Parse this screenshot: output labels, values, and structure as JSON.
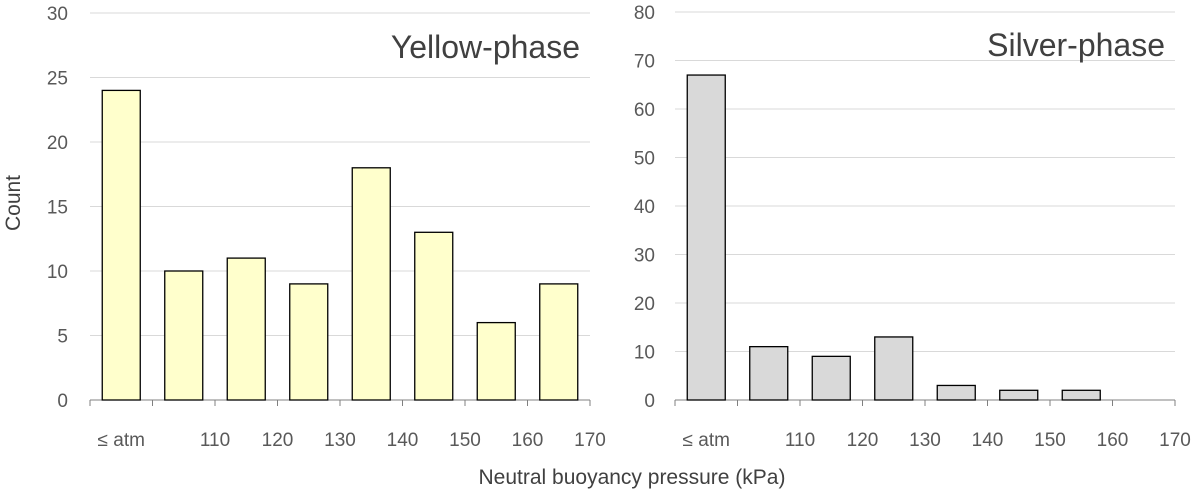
{
  "figure": {
    "shared_xlabel": "Neutral buoyancy pressure (kPa)"
  },
  "chart_data": [
    {
      "type": "bar",
      "title": "Yellow-phase",
      "ylabel": "Count",
      "xlabel": "Neutral buoyancy pressure (kPa)",
      "ylim": [
        0,
        30
      ],
      "yticks": [
        0,
        5,
        10,
        15,
        20,
        25,
        30
      ],
      "categories": [
        "≤ atm",
        "100–110",
        "110–120",
        "120–130",
        "130–140",
        "140–150",
        "150–160",
        "160–170"
      ],
      "values": [
        24,
        10,
        11,
        9,
        18,
        13,
        6,
        9
      ],
      "xtick_labels": [
        "≤ atm",
        "110",
        "120",
        "130",
        "140",
        "150",
        "160",
        "170"
      ],
      "bar_color": "#ffffcc",
      "grid": true
    },
    {
      "type": "bar",
      "title": "Silver-phase",
      "ylabel": "",
      "xlabel": "Neutral buoyancy pressure (kPa)",
      "ylim": [
        0,
        80
      ],
      "yticks": [
        0,
        10,
        20,
        30,
        40,
        50,
        60,
        70,
        80
      ],
      "categories": [
        "≤ atm",
        "100–110",
        "110–120",
        "120–130",
        "130–140",
        "140–150",
        "150–160",
        "160–170"
      ],
      "values": [
        67,
        11,
        9,
        13,
        3,
        2,
        2,
        0
      ],
      "xtick_labels": [
        "≤ atm",
        "110",
        "120",
        "130",
        "140",
        "150",
        "160",
        "170"
      ],
      "bar_color": "#d9d9d9",
      "grid": true
    }
  ]
}
